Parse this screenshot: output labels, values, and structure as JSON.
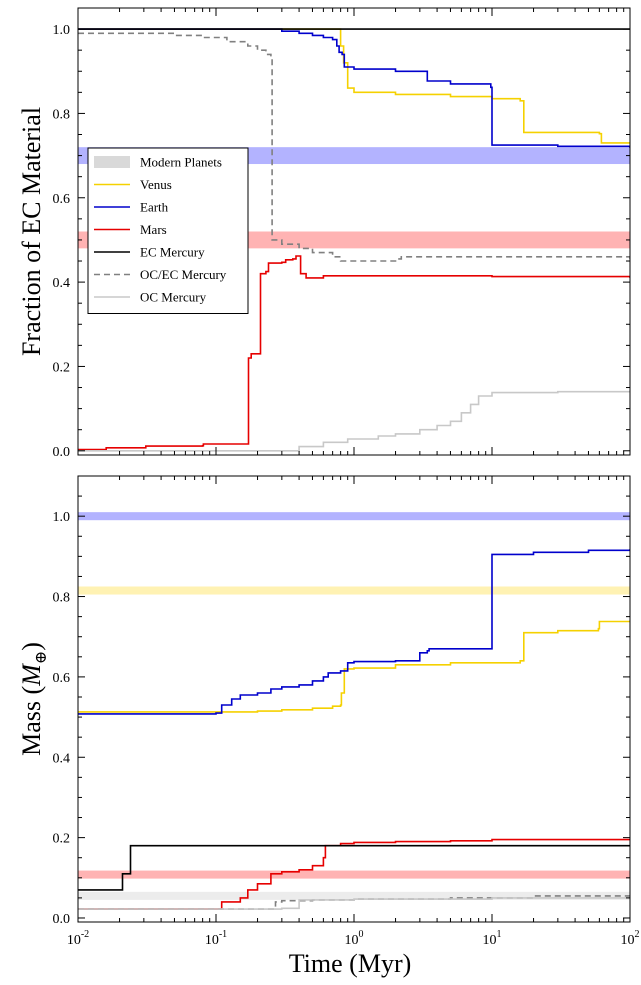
{
  "figure": {
    "xlabel": "Time (Myr)"
  },
  "legend": {
    "items": [
      {
        "label": "Modern Planets",
        "kind": "band",
        "color": "#d9d9d9"
      },
      {
        "label": "Venus",
        "kind": "line",
        "color": "#f5d100"
      },
      {
        "label": "Earth",
        "kind": "line",
        "color": "#0000cc"
      },
      {
        "label": "Mars",
        "kind": "line",
        "color": "#e60000"
      },
      {
        "label": "EC Mercury",
        "kind": "line",
        "color": "#000000"
      },
      {
        "label": "OC/EC Mercury",
        "kind": "dashed",
        "color": "#808080"
      },
      {
        "label": "OC Mercury",
        "kind": "line",
        "color": "#c8c8c8"
      }
    ]
  },
  "chart_data": [
    {
      "type": "line",
      "ylabel": "Fraction of EC Material",
      "xscale": "log",
      "xlim": [
        0.01,
        100
      ],
      "ylim": [
        -0.01,
        1.05
      ],
      "x_ticks": [
        0.01,
        0.1,
        1,
        10,
        100
      ],
      "x_tick_labels": [
        "10^-2",
        "10^-1",
        "10^0",
        "10^1",
        "10^2"
      ],
      "y_ticks": [
        0.0,
        0.2,
        0.4,
        0.6,
        0.8,
        1.0
      ],
      "y_tick_labels": [
        "0.0",
        "0.2",
        "0.4",
        "0.6",
        "0.8",
        "1.0"
      ],
      "show_x_tick_labels": false,
      "bands": [
        {
          "name": "Earth",
          "color": "#b3b3ff",
          "range": [
            0.68,
            0.72
          ]
        },
        {
          "name": "Mars",
          "color": "#ffb3b3",
          "range": [
            0.48,
            0.52
          ]
        }
      ],
      "series": [
        {
          "name": "Venus",
          "color": "#f5d100",
          "style": "solid",
          "points": [
            [
              0.01,
              1.0
            ],
            [
              0.78,
              1.0
            ],
            [
              0.8,
              0.96
            ],
            [
              0.84,
              0.92
            ],
            [
              0.9,
              0.86
            ],
            [
              1.0,
              0.85
            ],
            [
              2.0,
              0.845
            ],
            [
              5.0,
              0.84
            ],
            [
              10,
              0.835
            ],
            [
              16,
              0.83
            ],
            [
              17,
              0.755
            ],
            [
              60,
              0.752
            ],
            [
              62,
              0.73
            ],
            [
              100,
              0.73
            ]
          ]
        },
        {
          "name": "Earth",
          "color": "#0000cc",
          "style": "solid",
          "points": [
            [
              0.01,
              1.0
            ],
            [
              0.1,
              1.0
            ],
            [
              0.3,
              0.995
            ],
            [
              0.4,
              0.99
            ],
            [
              0.5,
              0.985
            ],
            [
              0.6,
              0.98
            ],
            [
              0.7,
              0.975
            ],
            [
              0.75,
              0.96
            ],
            [
              0.78,
              0.945
            ],
            [
              0.82,
              0.94
            ],
            [
              0.85,
              0.91
            ],
            [
              1.0,
              0.905
            ],
            [
              2.0,
              0.9
            ],
            [
              3.3,
              0.9
            ],
            [
              3.4,
              0.877
            ],
            [
              5.0,
              0.87
            ],
            [
              9.8,
              0.862
            ],
            [
              10,
              0.725
            ],
            [
              30,
              0.722
            ],
            [
              100,
              0.718
            ]
          ]
        },
        {
          "name": "Mars",
          "color": "#e60000",
          "style": "solid",
          "points": [
            [
              0.01,
              0.003
            ],
            [
              0.015,
              0.003
            ],
            [
              0.016,
              0.007
            ],
            [
              0.03,
              0.007
            ],
            [
              0.031,
              0.011
            ],
            [
              0.08,
              0.012
            ],
            [
              0.081,
              0.016
            ],
            [
              0.17,
              0.016
            ],
            [
              0.172,
              0.22
            ],
            [
              0.18,
              0.23
            ],
            [
              0.2,
              0.23
            ],
            [
              0.21,
              0.42
            ],
            [
              0.23,
              0.425
            ],
            [
              0.24,
              0.445
            ],
            [
              0.3,
              0.447
            ],
            [
              0.32,
              0.453
            ],
            [
              0.36,
              0.455
            ],
            [
              0.38,
              0.462
            ],
            [
              0.4,
              0.462
            ],
            [
              0.41,
              0.42
            ],
            [
              0.45,
              0.41
            ],
            [
              0.55,
              0.41
            ],
            [
              0.6,
              0.415
            ],
            [
              1.0,
              0.415
            ],
            [
              10,
              0.413
            ],
            [
              100,
              0.41
            ]
          ]
        },
        {
          "name": "EC Mercury",
          "color": "#000000",
          "style": "solid",
          "points": [
            [
              0.01,
              1.0
            ],
            [
              100,
              1.0
            ]
          ]
        },
        {
          "name": "OC/EC Mercury",
          "color": "#808080",
          "style": "dashed",
          "points": [
            [
              0.01,
              0.99
            ],
            [
              0.02,
              0.99
            ],
            [
              0.05,
              0.985
            ],
            [
              0.08,
              0.98
            ],
            [
              0.12,
              0.97
            ],
            [
              0.17,
              0.96
            ],
            [
              0.2,
              0.95
            ],
            [
              0.23,
              0.94
            ],
            [
              0.25,
              0.935
            ],
            [
              0.255,
              0.5
            ],
            [
              0.3,
              0.49
            ],
            [
              0.4,
              0.48
            ],
            [
              0.5,
              0.47
            ],
            [
              0.7,
              0.46
            ],
            [
              0.8,
              0.45
            ],
            [
              1.5,
              0.45
            ],
            [
              2.0,
              0.455
            ],
            [
              2.2,
              0.46
            ],
            [
              10,
              0.46
            ],
            [
              100,
              0.455
            ]
          ]
        },
        {
          "name": "OC Mercury",
          "color": "#c8c8c8",
          "style": "solid",
          "points": [
            [
              0.01,
              0.0
            ],
            [
              0.3,
              0.0
            ],
            [
              0.4,
              0.01
            ],
            [
              0.6,
              0.02
            ],
            [
              0.9,
              0.028
            ],
            [
              1.5,
              0.035
            ],
            [
              2.0,
              0.04
            ],
            [
              3.0,
              0.05
            ],
            [
              4.0,
              0.06
            ],
            [
              5.0,
              0.07
            ],
            [
              6.0,
              0.09
            ],
            [
              7.0,
              0.11
            ],
            [
              8.0,
              0.13
            ],
            [
              10,
              0.138
            ],
            [
              30,
              0.14
            ],
            [
              100,
              0.142
            ]
          ]
        }
      ]
    },
    {
      "type": "line",
      "ylabel": "Mass (M⊕)",
      "xlabel": "Time (Myr)",
      "xscale": "log",
      "xlim": [
        0.01,
        100
      ],
      "ylim": [
        -0.01,
        1.1
      ],
      "x_ticks": [
        0.01,
        0.1,
        1,
        10,
        100
      ],
      "x_tick_labels": [
        "10^-2",
        "10^-1",
        "10^0",
        "10^1",
        "10^2"
      ],
      "y_ticks": [
        0.0,
        0.2,
        0.4,
        0.6,
        0.8,
        1.0
      ],
      "y_tick_labels": [
        "0.0",
        "0.2",
        "0.4",
        "0.6",
        "0.8",
        "1.0"
      ],
      "show_x_tick_labels": true,
      "bands": [
        {
          "name": "Earth",
          "color": "#b3b3ff",
          "range": [
            0.99,
            1.01
          ]
        },
        {
          "name": "Venus",
          "color": "#fff2b3",
          "range": [
            0.805,
            0.825
          ]
        },
        {
          "name": "Mars",
          "color": "#ffb3b3",
          "range": [
            0.098,
            0.118
          ]
        },
        {
          "name": "Mercury",
          "color": "#ececec",
          "range": [
            0.045,
            0.065
          ]
        }
      ],
      "series": [
        {
          "name": "Venus",
          "color": "#f5d100",
          "style": "solid",
          "points": [
            [
              0.01,
              0.513
            ],
            [
              0.1,
              0.513
            ],
            [
              0.2,
              0.515
            ],
            [
              0.3,
              0.518
            ],
            [
              0.5,
              0.522
            ],
            [
              0.7,
              0.527
            ],
            [
              0.8,
              0.53
            ],
            [
              0.81,
              0.56
            ],
            [
              0.85,
              0.62
            ],
            [
              1.0,
              0.622
            ],
            [
              2.0,
              0.63
            ],
            [
              5.0,
              0.635
            ],
            [
              16,
              0.64
            ],
            [
              17,
              0.71
            ],
            [
              30,
              0.715
            ],
            [
              59,
              0.72
            ],
            [
              60,
              0.738
            ],
            [
              100,
              0.74
            ]
          ]
        },
        {
          "name": "Earth",
          "color": "#0000cc",
          "style": "solid",
          "points": [
            [
              0.01,
              0.508
            ],
            [
              0.1,
              0.51
            ],
            [
              0.11,
              0.53
            ],
            [
              0.13,
              0.545
            ],
            [
              0.15,
              0.555
            ],
            [
              0.2,
              0.56
            ],
            [
              0.25,
              0.57
            ],
            [
              0.3,
              0.575
            ],
            [
              0.4,
              0.58
            ],
            [
              0.5,
              0.59
            ],
            [
              0.6,
              0.6
            ],
            [
              0.65,
              0.61
            ],
            [
              0.8,
              0.615
            ],
            [
              0.9,
              0.635
            ],
            [
              1.0,
              0.638
            ],
            [
              2.0,
              0.64
            ],
            [
              3.0,
              0.66
            ],
            [
              3.4,
              0.665
            ],
            [
              3.5,
              0.67
            ],
            [
              9.8,
              0.67
            ],
            [
              10,
              0.905
            ],
            [
              20,
              0.91
            ],
            [
              50,
              0.915
            ],
            [
              100,
              0.918
            ]
          ]
        },
        {
          "name": "Mars",
          "color": "#e60000",
          "style": "solid",
          "points": [
            [
              0.01,
              0.022
            ],
            [
              0.1,
              0.022
            ],
            [
              0.11,
              0.04
            ],
            [
              0.15,
              0.05
            ],
            [
              0.17,
              0.07
            ],
            [
              0.2,
              0.085
            ],
            [
              0.25,
              0.11
            ],
            [
              0.3,
              0.115
            ],
            [
              0.4,
              0.12
            ],
            [
              0.5,
              0.13
            ],
            [
              0.6,
              0.15
            ],
            [
              0.62,
              0.18
            ],
            [
              0.8,
              0.185
            ],
            [
              1.0,
              0.188
            ],
            [
              2.0,
              0.19
            ],
            [
              5.0,
              0.192
            ],
            [
              10,
              0.195
            ],
            [
              100,
              0.195
            ]
          ]
        },
        {
          "name": "EC Mercury",
          "color": "#000000",
          "style": "solid",
          "points": [
            [
              0.01,
              0.07
            ],
            [
              0.02,
              0.07
            ],
            [
              0.021,
              0.11
            ],
            [
              0.023,
              0.11
            ],
            [
              0.024,
              0.18
            ],
            [
              100,
              0.18
            ]
          ]
        },
        {
          "name": "OC/EC Mercury",
          "color": "#808080",
          "style": "dashed",
          "points": [
            [
              0.01,
              0.022
            ],
            [
              0.26,
              0.022
            ],
            [
              0.27,
              0.04
            ],
            [
              0.3,
              0.043
            ],
            [
              0.5,
              0.045
            ],
            [
              1.0,
              0.047
            ],
            [
              5.0,
              0.05
            ],
            [
              20,
              0.055
            ],
            [
              100,
              0.058
            ]
          ]
        },
        {
          "name": "OC Mercury",
          "color": "#c8c8c8",
          "style": "solid",
          "points": [
            [
              0.01,
              0.022
            ],
            [
              0.1,
              0.022
            ],
            [
              0.2,
              0.022
            ],
            [
              0.3,
              0.024
            ],
            [
              0.4,
              0.045
            ],
            [
              1.0,
              0.047
            ],
            [
              10,
              0.05
            ],
            [
              100,
              0.052
            ]
          ]
        }
      ]
    }
  ]
}
